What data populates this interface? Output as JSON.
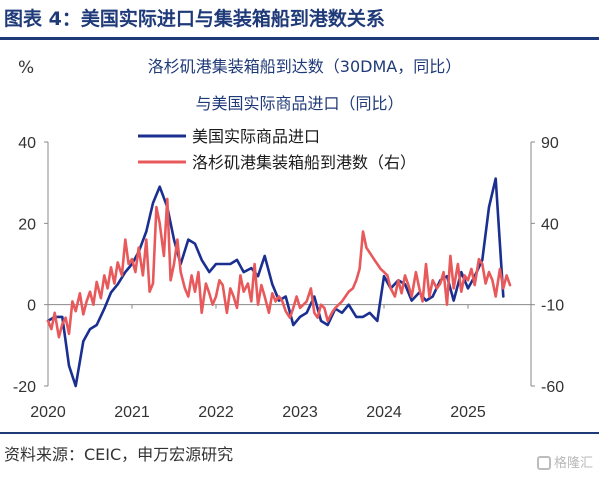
{
  "header": {
    "title": "图表 4：美国实际进口与集装箱船到港数关系"
  },
  "footer": {
    "source": "资料来源：CEIC，申万宏源研究",
    "watermark": "格隆汇"
  },
  "colors": {
    "title": "#1f3a78",
    "imports": "#1a2f8f",
    "ships": "#e8595b"
  },
  "chart_data": {
    "type": "line",
    "title_lines": [
      "洛杉矶港集装箱船到达数（30DMA，同比）",
      "与美国实际商品进口（同比）"
    ],
    "left_unit": "%",
    "x_ticks": [
      "2020",
      "2021",
      "2022",
      "2023",
      "2024",
      "2025"
    ],
    "x_range": [
      2020.0,
      2025.75
    ],
    "y_left": {
      "range": [
        -20,
        40
      ],
      "ticks": [
        "-20",
        "0",
        "20",
        "40"
      ]
    },
    "y_right": {
      "range": [
        -60,
        90
      ],
      "ticks": [
        "-60",
        "-10",
        "40",
        "90"
      ]
    },
    "legend_placement": "top-center",
    "grid": false,
    "series": [
      {
        "name": "美国实际商品进口",
        "axis": "left",
        "color": "#1a2f8f",
        "x": [
          2020.0,
          2020.08,
          2020.17,
          2020.25,
          2020.33,
          2020.42,
          2020.5,
          2020.58,
          2020.67,
          2020.75,
          2020.83,
          2020.92,
          2021.0,
          2021.08,
          2021.17,
          2021.25,
          2021.33,
          2021.42,
          2021.5,
          2021.58,
          2021.67,
          2021.75,
          2021.83,
          2021.92,
          2022.0,
          2022.08,
          2022.17,
          2022.25,
          2022.33,
          2022.42,
          2022.5,
          2022.58,
          2022.67,
          2022.75,
          2022.83,
          2022.92,
          2023.0,
          2023.08,
          2023.17,
          2023.25,
          2023.33,
          2023.42,
          2023.5,
          2023.58,
          2023.67,
          2023.75,
          2023.83,
          2023.92,
          2024.0,
          2024.08,
          2024.17,
          2024.25,
          2024.33,
          2024.42,
          2024.5,
          2024.58,
          2024.67,
          2024.75,
          2024.83,
          2024.92,
          2025.0,
          2025.08,
          2025.17,
          2025.25,
          2025.33,
          2025.42
        ],
        "values": [
          -4,
          -3,
          -3,
          -15,
          -20,
          -9,
          -6,
          -5,
          -1,
          3,
          5,
          8,
          10,
          13,
          18,
          25,
          29,
          24,
          16,
          10,
          16,
          15,
          11,
          8,
          10,
          10,
          10,
          11,
          8,
          9,
          7,
          12,
          5,
          1,
          2,
          -5,
          -3,
          -2,
          2,
          -4,
          -5,
          -1,
          -2,
          0,
          -3,
          -3,
          -2,
          -4,
          7,
          4,
          6,
          5,
          1,
          3,
          1,
          2,
          6,
          7,
          1,
          8,
          4,
          7,
          11,
          24,
          31,
          2
        ]
      },
      {
        "name": "洛杉矶港集装箱船到港数（右）",
        "axis": "right",
        "color": "#e8595b",
        "x": [
          2020.0,
          2020.04,
          2020.08,
          2020.13,
          2020.17,
          2020.21,
          2020.25,
          2020.29,
          2020.33,
          2020.38,
          2020.42,
          2020.46,
          2020.5,
          2020.54,
          2020.58,
          2020.63,
          2020.67,
          2020.71,
          2020.75,
          2020.79,
          2020.83,
          2020.88,
          2020.92,
          2020.96,
          2021.0,
          2021.04,
          2021.08,
          2021.13,
          2021.17,
          2021.21,
          2021.25,
          2021.29,
          2021.33,
          2021.38,
          2021.42,
          2021.46,
          2021.5,
          2021.54,
          2021.58,
          2021.63,
          2021.67,
          2021.71,
          2021.75,
          2021.79,
          2021.83,
          2021.88,
          2021.92,
          2021.96,
          2022.0,
          2022.04,
          2022.08,
          2022.13,
          2022.17,
          2022.21,
          2022.25,
          2022.29,
          2022.33,
          2022.38,
          2022.42,
          2022.46,
          2022.5,
          2022.54,
          2022.58,
          2022.63,
          2022.67,
          2022.71,
          2022.75,
          2022.79,
          2022.83,
          2022.88,
          2022.92,
          2022.96,
          2023.0,
          2023.04,
          2023.08,
          2023.13,
          2023.17,
          2023.21,
          2023.25,
          2023.29,
          2023.33,
          2023.38,
          2023.42,
          2023.46,
          2023.5,
          2023.54,
          2023.58,
          2023.63,
          2023.67,
          2023.71,
          2023.75,
          2023.79,
          2023.83,
          2023.88,
          2023.92,
          2023.96,
          2024.0,
          2024.04,
          2024.08,
          2024.13,
          2024.17,
          2024.21,
          2024.25,
          2024.29,
          2024.33,
          2024.38,
          2024.42,
          2024.46,
          2024.5,
          2024.54,
          2024.58,
          2024.63,
          2024.67,
          2024.71,
          2024.75,
          2024.79,
          2024.83,
          2024.88,
          2024.92,
          2024.96,
          2025.0,
          2025.04,
          2025.08,
          2025.13,
          2025.17,
          2025.21,
          2025.25,
          2025.29,
          2025.33,
          2025.38,
          2025.42,
          2025.46,
          2025.5
        ],
        "values": [
          -20,
          -25,
          -15,
          -30,
          -22,
          -18,
          -28,
          -8,
          -14,
          -3,
          -16,
          -8,
          -2,
          -10,
          4,
          -6,
          8,
          0,
          13,
          3,
          16,
          8,
          30,
          15,
          18,
          10,
          25,
          8,
          30,
          -2,
          3,
          50,
          40,
          20,
          55,
          5,
          15,
          30,
          10,
          0,
          -5,
          8,
          -2,
          10,
          -15,
          3,
          -3,
          -10,
          -5,
          5,
          2,
          -15,
          0,
          -5,
          -12,
          8,
          -2,
          3,
          -8,
          15,
          -10,
          2,
          -5,
          -15,
          -3,
          -8,
          -5,
          -8,
          -14,
          -18,
          -12,
          -5,
          -12,
          -10,
          -8,
          0,
          -15,
          -18,
          -10,
          -12,
          -20,
          -15,
          -12,
          -10,
          -8,
          -5,
          -2,
          0,
          5,
          12,
          35,
          25,
          22,
          18,
          15,
          12,
          10,
          8,
          0,
          -5,
          5,
          -3,
          8,
          2,
          -5,
          10,
          0,
          -8,
          15,
          -5,
          5,
          0,
          3,
          10,
          -10,
          20,
          0,
          15,
          -2,
          8,
          5,
          12,
          2,
          18,
          15,
          3,
          10,
          5,
          -5,
          12,
          0,
          8,
          2
        ]
      }
    ]
  }
}
